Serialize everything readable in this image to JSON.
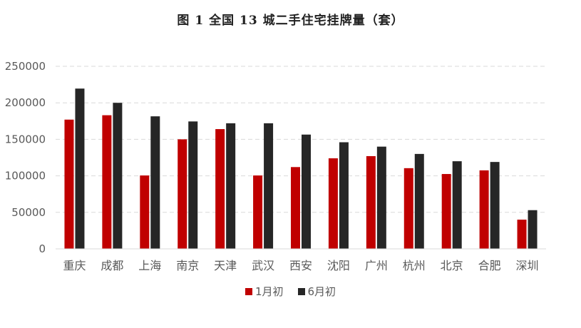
{
  "chart_data": {
    "type": "bar",
    "title": "图 1    全国 13 城二手住宅挂牌量（套）",
    "categories": [
      "重庆",
      "成都",
      "上海",
      "南京",
      "天津",
      "武汉",
      "西安",
      "沈阳",
      "广州",
      "杭州",
      "北京",
      "合肥",
      "深圳"
    ],
    "series": [
      {
        "name": "1月初",
        "color": "#c00000",
        "values": [
          177000,
          183000,
          100500,
          150000,
          164000,
          100500,
          112000,
          124000,
          127000,
          110500,
          102500,
          107500,
          40000
        ]
      },
      {
        "name": "6月初",
        "color": "#262626",
        "values": [
          219500,
          200000,
          181500,
          174500,
          172000,
          172000,
          156500,
          146000,
          140000,
          130000,
          120000,
          119000,
          53000
        ]
      }
    ],
    "yticks": [
      "0",
      "50000",
      "100000",
      "150000",
      "200000",
      "250000"
    ],
    "ylim": [
      0,
      250000
    ],
    "xlabel": "",
    "ylabel": "",
    "grid": "horizontal dashed",
    "legend_position": "bottom"
  }
}
